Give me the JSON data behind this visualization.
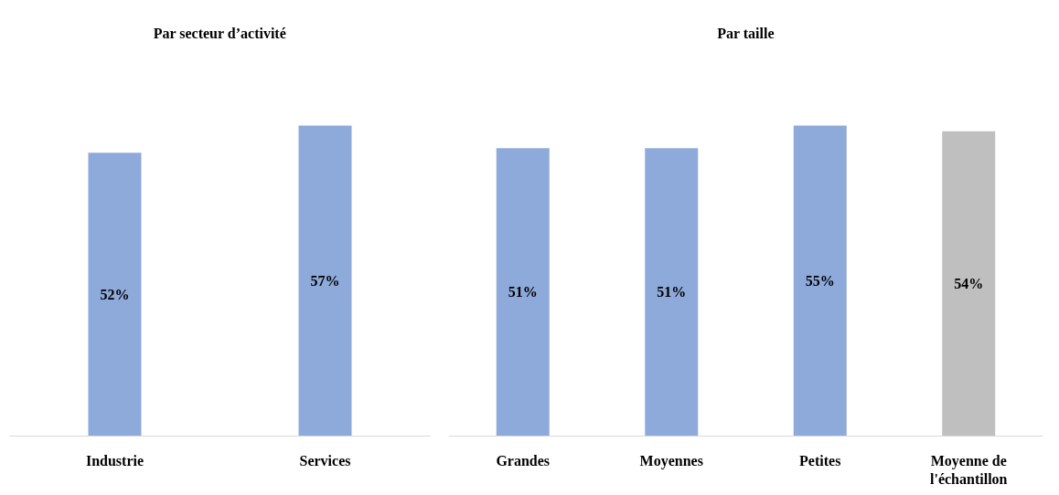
{
  "chart_data": [
    {
      "type": "bar",
      "title": "Par secteur d’activité",
      "categories": [
        "Industrie",
        "Services"
      ],
      "values": [
        52,
        57
      ],
      "colors": [
        "#8eaadb",
        "#8eaadb"
      ],
      "value_labels": [
        "52%",
        "57%"
      ]
    },
    {
      "type": "bar",
      "title": "Par taille",
      "categories": [
        "Grandes",
        "Moyennes",
        "Petites",
        "Moyenne de l'échantillon"
      ],
      "values": [
        51,
        51,
        55,
        54
      ],
      "colors": [
        "#8eaadb",
        "#8eaadb",
        "#8eaadb",
        "#bfbfbf"
      ],
      "value_labels": [
        "51%",
        "51%",
        "55%",
        "54%"
      ]
    }
  ]
}
